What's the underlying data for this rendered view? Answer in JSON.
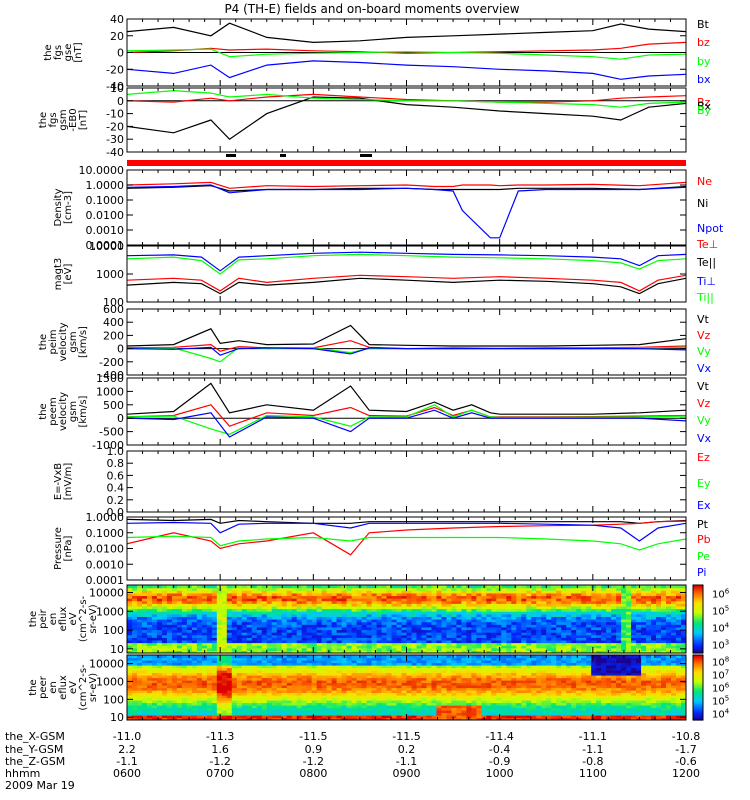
{
  "title": "P4 (TH-E) fields and on-board moments overview",
  "date": "2009 Mar 19",
  "colors": {
    "black": "#000000",
    "red": "#ff0000",
    "green": "#00ff00",
    "blue": "#0000ff"
  },
  "ephemeris": {
    "labels": [
      "the_X-GSM",
      "the_Y-GSM",
      "the_Z-GSM",
      "hhmm"
    ],
    "x_gsm": [
      "-11.0",
      "-11.3",
      "-11.5",
      "-11.5",
      "-11.4",
      "-11.1",
      "-10.8"
    ],
    "y_gsm": [
      "2.2",
      "1.6",
      "0.9",
      "0.2",
      "-0.4",
      "-1.1",
      "-1.7"
    ],
    "z_gsm": [
      "-1.1",
      "-1.2",
      "-1.2",
      "-1.1",
      "-0.9",
      "-0.8",
      "-0.6"
    ],
    "hhmm": [
      "0600",
      "0700",
      "0800",
      "0900",
      "1000",
      "1100",
      "1200"
    ]
  },
  "chart_data": [
    {
      "type": "line",
      "panel": "fgs_gse",
      "ylabel": [
        "the",
        "fgs",
        "gse",
        "[nT]"
      ],
      "ylim": [
        -40,
        40
      ],
      "yticks": [
        "40",
        "20",
        "0",
        "-20",
        "-40"
      ],
      "legend": [
        "Bt",
        "bz",
        "by",
        "bx"
      ],
      "x": [
        6.0,
        6.5,
        6.9,
        7.1,
        7.5,
        8.0,
        8.5,
        9.0,
        9.5,
        10.0,
        10.5,
        11.0,
        11.3,
        11.6,
        12.0
      ],
      "series": [
        {
          "name": "Bt",
          "color": "black",
          "values": [
            25,
            30,
            20,
            35,
            18,
            12,
            14,
            18,
            20,
            22,
            24,
            26,
            34,
            28,
            25
          ]
        },
        {
          "name": "bz",
          "color": "red",
          "values": [
            0,
            2,
            5,
            3,
            4,
            2,
            1,
            -1,
            0,
            1,
            2,
            3,
            5,
            10,
            12
          ]
        },
        {
          "name": "by",
          "color": "green",
          "values": [
            2,
            3,
            4,
            -5,
            -2,
            -1,
            0,
            1,
            0,
            -1,
            -3,
            -5,
            -8,
            -3,
            -2
          ]
        },
        {
          "name": "bx",
          "color": "blue",
          "values": [
            -20,
            -25,
            -15,
            -30,
            -15,
            -10,
            -12,
            -15,
            -17,
            -20,
            -22,
            -25,
            -32,
            -28,
            -26
          ]
        }
      ]
    },
    {
      "type": "line",
      "panel": "fgs_gsm",
      "ylabel": [
        "the",
        "fgs",
        "gsm",
        "-EB0",
        "[nT]"
      ],
      "ylim": [
        -40,
        10
      ],
      "yticks": [
        "10",
        "0",
        "-10",
        "-20",
        "-30",
        "-40"
      ],
      "legend": [
        "Bz",
        "Bx",
        "By"
      ],
      "x": [
        6.0,
        6.5,
        6.9,
        7.1,
        7.5,
        8.0,
        8.5,
        9.0,
        9.5,
        10.0,
        10.5,
        11.0,
        11.3,
        11.6,
        12.0
      ],
      "series": [
        {
          "name": "Bz",
          "color": "red",
          "values": [
            0,
            -1,
            2,
            0,
            3,
            5,
            3,
            1,
            0,
            -1,
            -1,
            0,
            2,
            3,
            4
          ]
        },
        {
          "name": "Bx",
          "color": "black",
          "values": [
            -20,
            -25,
            -15,
            -30,
            -10,
            3,
            2,
            -3,
            -5,
            -8,
            -10,
            -12,
            -15,
            -5,
            -2
          ]
        },
        {
          "name": "By",
          "color": "green",
          "values": [
            5,
            8,
            6,
            3,
            5,
            2,
            1,
            0,
            0,
            -1,
            -2,
            -3,
            -5,
            -2,
            -1
          ]
        }
      ]
    },
    {
      "type": "line",
      "panel": "density",
      "ylog": true,
      "ylabel": [
        "Density",
        "[cm-3]"
      ],
      "ylim": [
        0.0001,
        10
      ],
      "yticks": [
        "10.0000",
        "1.0000",
        "0.1000",
        "0.0100",
        "0.0010",
        "0.0001"
      ],
      "legend": [
        "Ne",
        "Ni",
        "Npot"
      ],
      "x": [
        6.0,
        6.5,
        6.9,
        7.1,
        7.5,
        8.0,
        8.5,
        9.0,
        9.3,
        9.5,
        9.6,
        9.9,
        10.0,
        10.2,
        10.5,
        11.0,
        11.5,
        12.0
      ],
      "series": [
        {
          "name": "Ne",
          "color": "red",
          "values": [
            1.0,
            1.2,
            1.5,
            0.6,
            0.9,
            0.8,
            0.9,
            1.0,
            0.8,
            0.8,
            1.0,
            1.0,
            0.9,
            1.0,
            1.0,
            1.1,
            0.9,
            1.5
          ]
        },
        {
          "name": "Ni",
          "color": "black",
          "values": [
            0.6,
            0.7,
            0.9,
            0.4,
            0.5,
            0.5,
            0.6,
            0.6,
            0.5,
            0.5,
            0.5,
            0.5,
            0.5,
            0.6,
            0.6,
            0.6,
            0.5,
            0.8
          ]
        },
        {
          "name": "Npot",
          "color": "blue",
          "values": [
            0.7,
            0.8,
            1.0,
            0.3,
            0.5,
            0.5,
            0.5,
            0.6,
            0.5,
            0.4,
            0.02,
            0.0003,
            0.0003,
            0.4,
            0.5,
            0.5,
            0.5,
            0.7
          ]
        }
      ]
    },
    {
      "type": "line",
      "panel": "temperature",
      "ylog": true,
      "ylabel": [
        "magt3",
        "[eV]"
      ],
      "ylim": [
        100,
        10000
      ],
      "yticks": [
        "10000",
        "1000",
        "100"
      ],
      "legend": [
        "Te⊥",
        "Te||",
        "Ti⊥",
        "Ti||"
      ],
      "x": [
        6.0,
        6.5,
        6.8,
        7.0,
        7.2,
        7.5,
        8.0,
        8.5,
        9.0,
        9.5,
        10.0,
        10.5,
        11.0,
        11.3,
        11.5,
        11.7,
        12.0
      ],
      "series": [
        {
          "name": "Te⊥",
          "color": "red",
          "values": [
            600,
            700,
            600,
            250,
            700,
            500,
            700,
            900,
            800,
            700,
            800,
            700,
            600,
            500,
            250,
            600,
            900
          ]
        },
        {
          "name": "Te||",
          "color": "black",
          "values": [
            400,
            500,
            450,
            200,
            500,
            400,
            500,
            700,
            600,
            500,
            600,
            550,
            450,
            350,
            200,
            450,
            700
          ]
        },
        {
          "name": "Ti⊥",
          "color": "blue",
          "values": [
            4500,
            4800,
            4000,
            1300,
            4000,
            4500,
            5500,
            6000,
            5500,
            5000,
            4800,
            4500,
            4000,
            3500,
            2000,
            4500,
            5000
          ]
        },
        {
          "name": "Ti||",
          "color": "green",
          "values": [
            3500,
            4000,
            3000,
            1000,
            3200,
            3500,
            4500,
            5000,
            4500,
            4000,
            3800,
            3500,
            3000,
            2500,
            1500,
            3000,
            3500
          ]
        }
      ]
    },
    {
      "type": "line",
      "panel": "peim_velocity",
      "ylabel": [
        "the",
        "peim",
        "velocity",
        "gsm",
        "[km/s]"
      ],
      "ylim": [
        -400,
        600
      ],
      "yticks": [
        "600",
        "400",
        "200",
        "0",
        "-200",
        "-400"
      ],
      "legend": [
        "Vt",
        "Vz",
        "Vy",
        "Vx"
      ],
      "x": [
        6.0,
        6.5,
        6.9,
        7.0,
        7.2,
        7.5,
        8.0,
        8.4,
        8.6,
        9.0,
        9.5,
        10.0,
        10.5,
        11.0,
        11.5,
        12.0
      ],
      "series": [
        {
          "name": "Vt",
          "color": "black",
          "values": [
            40,
            60,
            300,
            80,
            120,
            60,
            70,
            350,
            60,
            50,
            40,
            40,
            40,
            50,
            60,
            150
          ]
        },
        {
          "name": "Vz",
          "color": "red",
          "values": [
            10,
            20,
            60,
            -40,
            30,
            10,
            10,
            120,
            20,
            0,
            10,
            5,
            10,
            10,
            20,
            40
          ]
        },
        {
          "name": "Vy",
          "color": "green",
          "values": [
            0,
            10,
            -150,
            -200,
            20,
            0,
            10,
            -60,
            0,
            0,
            0,
            0,
            0,
            0,
            10,
            20
          ]
        },
        {
          "name": "Vx",
          "color": "blue",
          "values": [
            0,
            -10,
            20,
            -100,
            0,
            10,
            0,
            -80,
            10,
            0,
            0,
            0,
            0,
            0,
            0,
            -20
          ]
        }
      ]
    },
    {
      "type": "line",
      "panel": "peem_velocity",
      "ylabel": [
        "the",
        "peem",
        "velocity",
        "gsm",
        "[km/s]"
      ],
      "ylim": [
        -1000,
        1500
      ],
      "yticks": [
        "1500",
        "1000",
        "500",
        "0",
        "-500",
        "-1000"
      ],
      "legend": [
        "Vt",
        "Vz",
        "Vy",
        "Vx"
      ],
      "x": [
        6.0,
        6.5,
        6.9,
        7.1,
        7.5,
        8.0,
        8.4,
        8.6,
        9.0,
        9.3,
        9.5,
        9.7,
        9.9,
        10.0,
        10.5,
        11.0,
        11.5,
        12.0
      ],
      "series": [
        {
          "name": "Vt",
          "color": "black",
          "values": [
            150,
            250,
            1300,
            200,
            500,
            300,
            1200,
            300,
            250,
            600,
            300,
            500,
            200,
            150,
            150,
            150,
            200,
            300
          ]
        },
        {
          "name": "Vz",
          "color": "red",
          "values": [
            50,
            100,
            500,
            -300,
            200,
            100,
            400,
            100,
            80,
            400,
            100,
            300,
            50,
            50,
            50,
            60,
            80,
            100
          ]
        },
        {
          "name": "Vy",
          "color": "green",
          "values": [
            50,
            80,
            -400,
            -600,
            100,
            50,
            -300,
            50,
            50,
            500,
            50,
            300,
            50,
            30,
            30,
            40,
            50,
            80
          ]
        },
        {
          "name": "Vx",
          "color": "blue",
          "values": [
            0,
            -50,
            200,
            -700,
            50,
            0,
            -500,
            0,
            0,
            300,
            0,
            200,
            0,
            0,
            0,
            0,
            0,
            -100
          ]
        }
      ]
    },
    {
      "type": "line",
      "panel": "exb",
      "empty": true,
      "ylabel": [
        "E=-VxB",
        "[mV/m]"
      ],
      "ylim": [
        0,
        1
      ],
      "yticks": [
        "1.0",
        "0.8",
        "0.6",
        "0.4",
        "0.2",
        "0.0"
      ],
      "legend": [
        "Ez",
        "Ey",
        "Ex"
      ],
      "x": [],
      "series": []
    },
    {
      "type": "line",
      "panel": "pressure",
      "ylog": true,
      "ylabel": [
        "Pressure",
        "[nPa]"
      ],
      "ylim": [
        0.0001,
        1
      ],
      "yticks": [
        "1.0000",
        "0.1000",
        "0.0100",
        "0.0010",
        "0.0001"
      ],
      "legend": [
        "Pt",
        "Pb",
        "Pe",
        "Pi"
      ],
      "x": [
        6.0,
        6.5,
        6.9,
        7.0,
        7.2,
        7.5,
        8.0,
        8.4,
        8.6,
        9.0,
        9.5,
        10.0,
        10.5,
        11.0,
        11.3,
        11.5,
        11.7,
        12.0
      ],
      "series": [
        {
          "name": "Pt",
          "color": "black",
          "values": [
            0.7,
            0.6,
            0.7,
            0.4,
            0.6,
            0.5,
            0.4,
            0.4,
            0.5,
            0.5,
            0.5,
            0.5,
            0.5,
            0.5,
            0.5,
            0.4,
            0.5,
            0.6
          ]
        },
        {
          "name": "Pb",
          "color": "red",
          "values": [
            0.02,
            0.1,
            0.03,
            0.01,
            0.02,
            0.03,
            0.1,
            0.004,
            0.1,
            0.15,
            0.2,
            0.25,
            0.28,
            0.3,
            0.35,
            0.4,
            0.5,
            0.55
          ]
        },
        {
          "name": "Pe",
          "color": "green",
          "values": [
            0.05,
            0.06,
            0.05,
            0.015,
            0.03,
            0.04,
            0.05,
            0.03,
            0.05,
            0.05,
            0.05,
            0.05,
            0.04,
            0.03,
            0.02,
            0.008,
            0.02,
            0.04
          ]
        },
        {
          "name": "Pi",
          "color": "blue",
          "values": [
            0.4,
            0.45,
            0.4,
            0.1,
            0.35,
            0.4,
            0.4,
            0.2,
            0.4,
            0.4,
            0.4,
            0.4,
            0.35,
            0.3,
            0.2,
            0.03,
            0.2,
            0.4
          ]
        }
      ]
    },
    {
      "type": "heatmap",
      "panel": "peir_en_eflux",
      "ylog": true,
      "ylabel": [
        "the",
        "peir",
        "en",
        "eflux",
        "eV",
        "(cm^2-s-",
        "sr-eV)"
      ],
      "ylim": [
        6,
        25000
      ],
      "yticks": [
        "10000",
        "1000",
        "100",
        "10"
      ],
      "colorbar": {
        "ticks": [
          "10^6",
          "10^5",
          "10^4",
          "10^3"
        ],
        "log_range": [
          2.5,
          6.5
        ]
      }
    },
    {
      "type": "heatmap",
      "panel": "peer_en_eflux",
      "ylog": true,
      "ylabel": [
        "the",
        "peer",
        "en",
        "eflux",
        "eV",
        "(cm^2-s-",
        "sr-eV)"
      ],
      "ylim": [
        7,
        30000
      ],
      "yticks": [
        "10000",
        "1000",
        "100",
        "10"
      ],
      "colorbar": {
        "ticks": [
          "10^8",
          "10^7",
          "10^6",
          "10^5",
          "10^4"
        ],
        "log_range": [
          3.5,
          8.5
        ]
      }
    }
  ]
}
